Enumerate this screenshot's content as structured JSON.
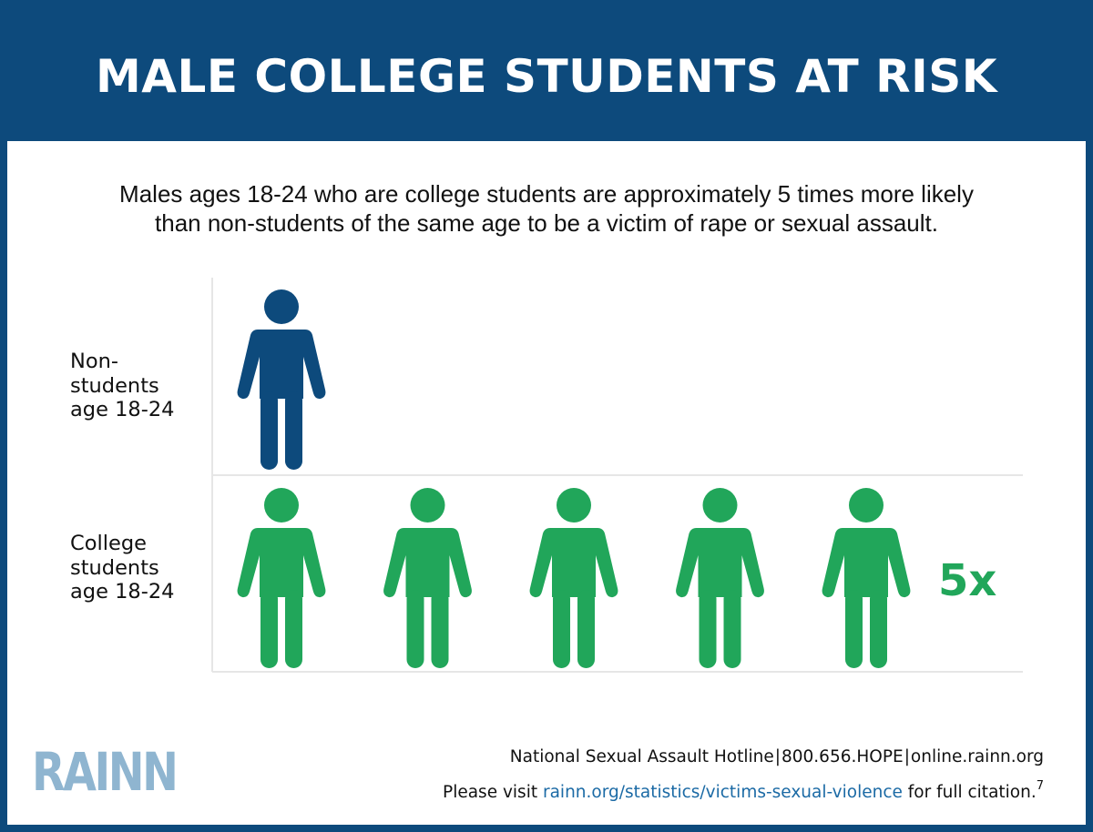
{
  "header": {
    "title": "MALE COLLEGE STUDENTS AT RISK"
  },
  "subtitle": {
    "line1": "Males ages 18-24 who are college students are approximately 5 times more likely",
    "line2": "than non-students of the same age to be a victim of rape or sexual assault."
  },
  "rows": {
    "non_students": {
      "label_lines": [
        "Non-",
        "students",
        "age 18-24"
      ]
    },
    "college_students": {
      "label_lines": [
        "College",
        "students",
        "age 18-24"
      ]
    }
  },
  "multiplier": "5x",
  "colors": {
    "brand_navy": "#0d4a7c",
    "non_students": "#0d4a7c",
    "college_students": "#21a65a",
    "logo": "#8fb5d0",
    "link": "#1b6aa5",
    "gridline": "#e6e6e6"
  },
  "chart_data": {
    "type": "bar",
    "mark": "pictogram",
    "icon": "person-icon",
    "categories": [
      "Non-students age 18-24",
      "College students age 18-24"
    ],
    "values": [
      1,
      5
    ],
    "title": "MALE COLLEGE STUDENTS AT RISK",
    "annotations": [
      "5x"
    ]
  },
  "footer": {
    "logo": "RAINN",
    "hotline_label": "National Sexual Assault Hotline",
    "separator": "|",
    "phone": "800.656.HOPE",
    "website": "online.rainn.org",
    "citation_prefix": "Please visit",
    "citation_link": "rainn.org/statistics/victims-sexual-violence",
    "citation_suffix": "for full citation.",
    "citation_ref": "7"
  }
}
